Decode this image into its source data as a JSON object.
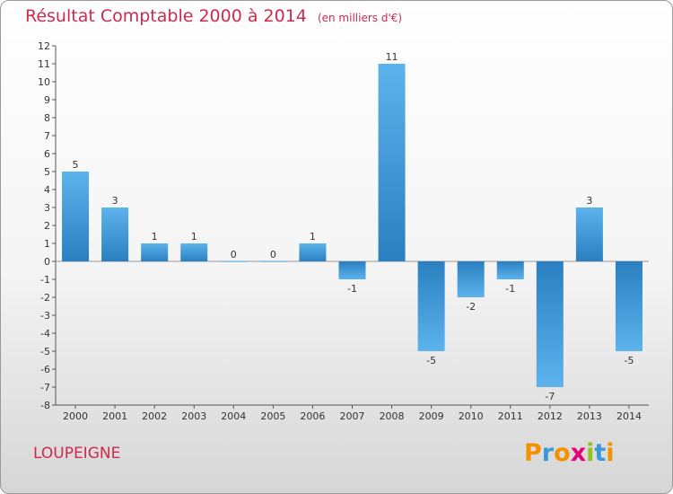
{
  "chart_data": {
    "type": "bar",
    "title": "Résultat Comptable 2000 à 2014",
    "subtitle": "(en milliers d'€)",
    "categories": [
      "2000",
      "2001",
      "2002",
      "2003",
      "2004",
      "2005",
      "2006",
      "2007",
      "2008",
      "2009",
      "2010",
      "2011",
      "2012",
      "2013",
      "2014"
    ],
    "values": [
      5,
      3,
      1,
      1,
      0,
      0,
      1,
      -1,
      11,
      -5,
      -2,
      -1,
      -7,
      3,
      -5
    ],
    "ylim": [
      -8,
      12
    ],
    "yticks": [
      -8,
      -7,
      -6,
      -5,
      -4,
      -3,
      -2,
      -1,
      0,
      1,
      2,
      3,
      4,
      5,
      6,
      7,
      8,
      9,
      10,
      11,
      12
    ],
    "xlabel": "",
    "ylabel": "",
    "grid": false
  },
  "footer": {
    "place": "LOUPEIGNE",
    "logo_letters": [
      "P",
      "r",
      "o",
      "x",
      "i",
      "t",
      "i"
    ],
    "logo_colors": [
      "#f39200",
      "#3a9ad9",
      "#f39200",
      "#e6007e",
      "#95c11f",
      "#3a9ad9",
      "#f39200"
    ]
  },
  "colors": {
    "title": "#cc2a4e",
    "bar_light": "#5db3ec",
    "bar_dark": "#2a7fc0"
  }
}
